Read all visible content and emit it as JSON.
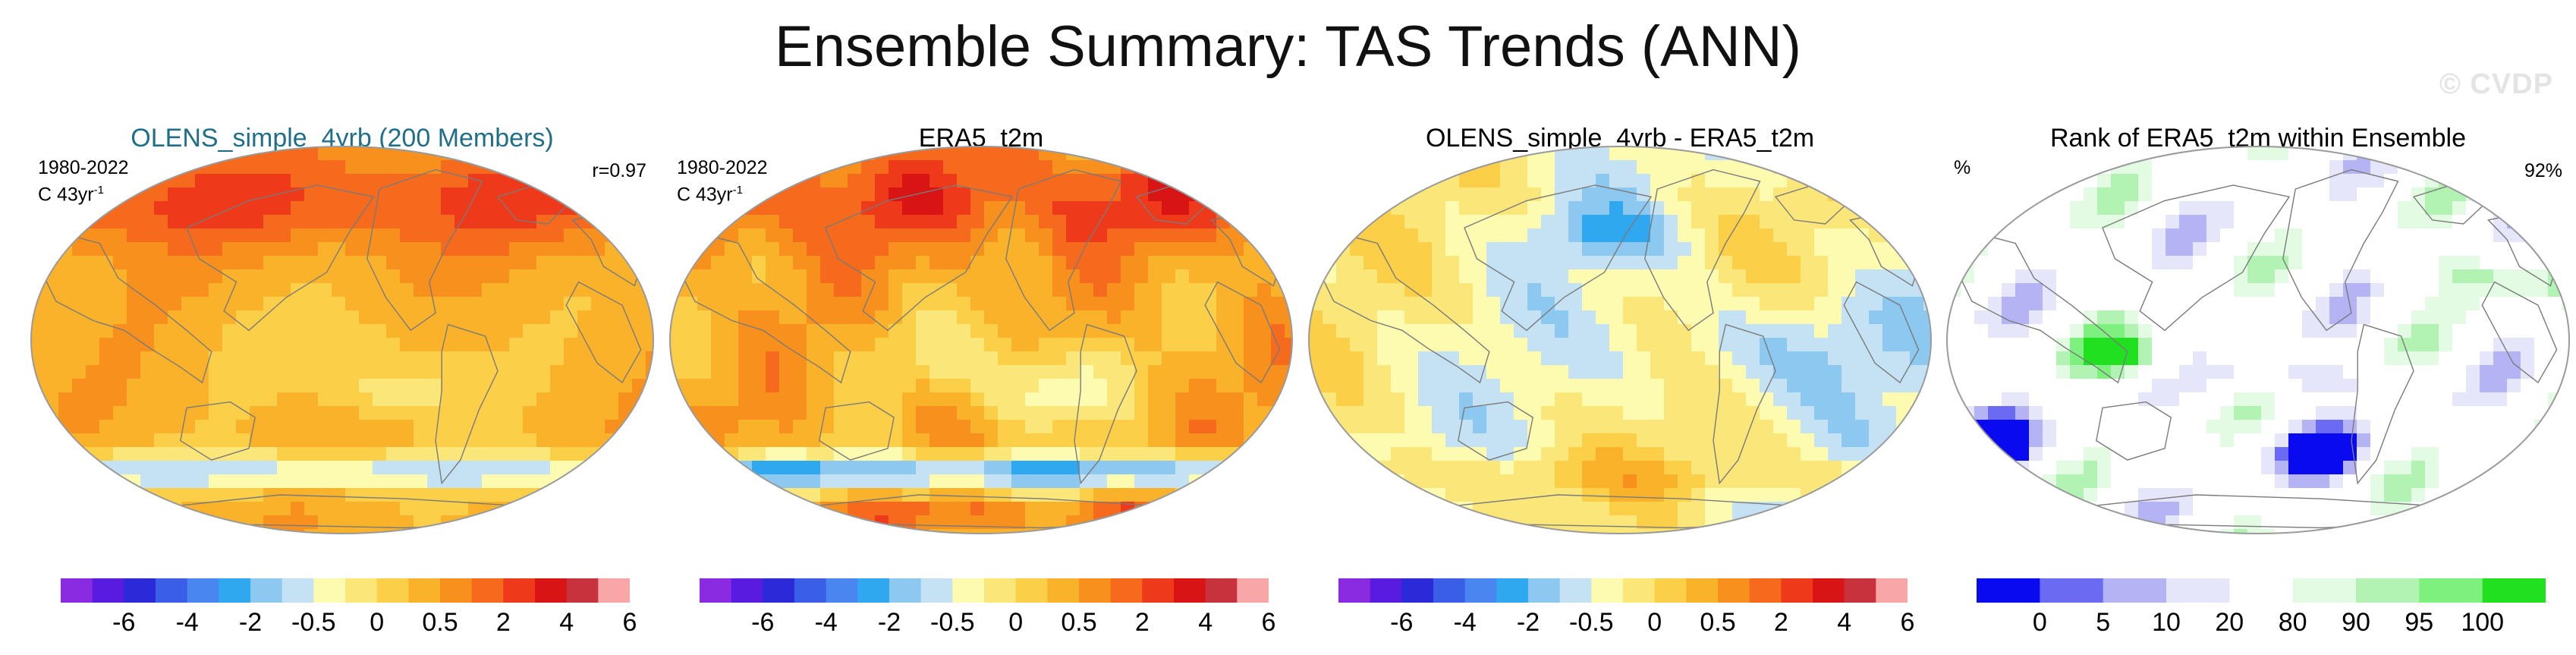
{
  "title": "Ensemble Summary: TAS Trends (ANN)",
  "watermark": "© CVDP",
  "colors": {
    "trend_palette": [
      "#8a2be2",
      "#5a1be0",
      "#2a2ad8",
      "#3a5ee8",
      "#4a86f0",
      "#2fa8f0",
      "#8cc8f0",
      "#c4e2f4",
      "#fdfbb0",
      "#fbe67a",
      "#fbcf48",
      "#fab22a",
      "#f8901e",
      "#f56a1c",
      "#ee3a1a",
      "#d81414",
      "#c8323c",
      "#f8a6a6"
    ],
    "rank_palette": [
      "#0a0af0",
      "#6a6af2",
      "#b4b4f4",
      "#e6e6fa",
      "#ffffff",
      "#e2fbe2",
      "#b2f2b2",
      "#7ef07e",
      "#20e020"
    ]
  },
  "panels": [
    {
      "title": "OLENS_simple_4yrb (200 Members)",
      "title_accent": true,
      "period": "1980-2022",
      "units_base": "C 43yr",
      "units_exp": "-1",
      "corner_right": "r=0.97",
      "palette": "trend_palette",
      "pattern": "ens_trend",
      "colorbar_labels": [
        "-6",
        "-4",
        "-2",
        "-0.5",
        "0",
        "0.5",
        "2",
        "4",
        "6"
      ]
    },
    {
      "title": "ERA5_t2m",
      "title_accent": false,
      "period": "1980-2022",
      "units_base": "C 43yr",
      "units_exp": "-1",
      "corner_right": "",
      "palette": "trend_palette",
      "pattern": "obs_trend",
      "colorbar_labels": [
        "-6",
        "-4",
        "-2",
        "-0.5",
        "0",
        "0.5",
        "2",
        "4",
        "6"
      ]
    },
    {
      "title": "OLENS_simple_4yrb - ERA5_t2m",
      "title_accent": false,
      "period": "",
      "units_base": "",
      "units_exp": "",
      "corner_right": "",
      "palette": "trend_palette",
      "pattern": "difference",
      "colorbar_labels": [
        "-6",
        "-4",
        "-2",
        "-0.5",
        "0",
        "0.5",
        "2",
        "4",
        "6"
      ]
    },
    {
      "title": "Rank of ERA5_t2m within Ensemble",
      "title_accent": false,
      "period": "%",
      "units_base": "",
      "units_exp": "",
      "corner_right": "92%",
      "palette": "rank_palette",
      "pattern": "rank",
      "colorbar_labels": [
        "0",
        "5",
        "10",
        "20",
        "80",
        "90",
        "95",
        "100"
      ]
    }
  ],
  "chart_data": [
    {
      "type": "heatmap",
      "title": "OLENS_simple_4yrb (200 Members)",
      "variable": "TAS trend",
      "units": "C 43yr-1",
      "period": "1980-2022",
      "annotation": "r=0.97",
      "colorbar_ticks": [
        -6,
        -4,
        -2,
        -0.5,
        0,
        0.5,
        2,
        4,
        6
      ]
    },
    {
      "type": "heatmap",
      "title": "ERA5_t2m",
      "variable": "TAS trend",
      "units": "C 43yr-1",
      "period": "1980-2022",
      "colorbar_ticks": [
        -6,
        -4,
        -2,
        -0.5,
        0,
        0.5,
        2,
        4,
        6
      ]
    },
    {
      "type": "heatmap",
      "title": "OLENS_simple_4yrb - ERA5_t2m",
      "variable": "TAS trend difference",
      "colorbar_ticks": [
        -6,
        -4,
        -2,
        -0.5,
        0,
        0.5,
        2,
        4,
        6
      ]
    },
    {
      "type": "heatmap",
      "title": "Rank of ERA5_t2m within Ensemble",
      "units": "%",
      "annotation": "92%",
      "colorbar_ticks": [
        0,
        5,
        10,
        20,
        80,
        90,
        95,
        100
      ]
    }
  ]
}
